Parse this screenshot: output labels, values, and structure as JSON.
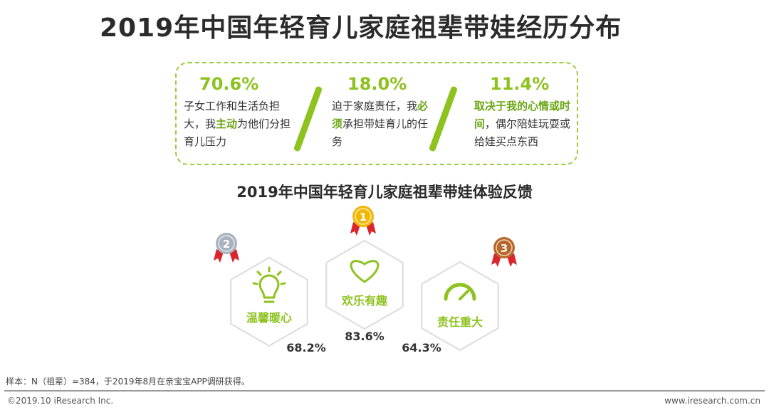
{
  "title": "2019年中国年轻育儿家庭祖辈带娃经历分布",
  "reasons": [
    {
      "percent": "70.6%",
      "text_before": "子女工作和生活负担大，我",
      "highlight": "主动",
      "text_after": "为他们分担育儿压力"
    },
    {
      "percent": "18.0%",
      "text_before": "迫于家庭责任，我",
      "highlight": "必须",
      "text_after": "承担带娃育儿的任务"
    },
    {
      "percent": "11.4%",
      "text_before": "",
      "highlight": "取决于我的心情或时间",
      "text_after": "，偶尔陪娃玩耍或给娃买点东西"
    }
  ],
  "colors": {
    "accent": "#8dc21f",
    "gold": "#f2b705",
    "silver": "#a9b2bf",
    "bronze": "#b8682a",
    "ribbon": "#d9262c"
  },
  "chart_data": {
    "type": "bar",
    "title": "2019年中国年轻育儿家庭祖辈带娃体验反馈",
    "categories": [
      "温馨暖心",
      "欢乐有趣",
      "责任重大"
    ],
    "values": [
      68.2,
      83.6,
      64.3
    ],
    "value_labels": [
      "68.2%",
      "83.6%",
      "64.3%"
    ],
    "ranks": [
      "2",
      "1",
      "3"
    ],
    "icons": [
      "lightbulb-icon",
      "heart-icon",
      "gauge-icon"
    ]
  },
  "footnote": "样本：N（祖辈）=384，于2019年8月在亲宝宝APP调研获得。",
  "copyright": "©2019.10 iResearch Inc.",
  "website": "www.iresearch.com.cn"
}
